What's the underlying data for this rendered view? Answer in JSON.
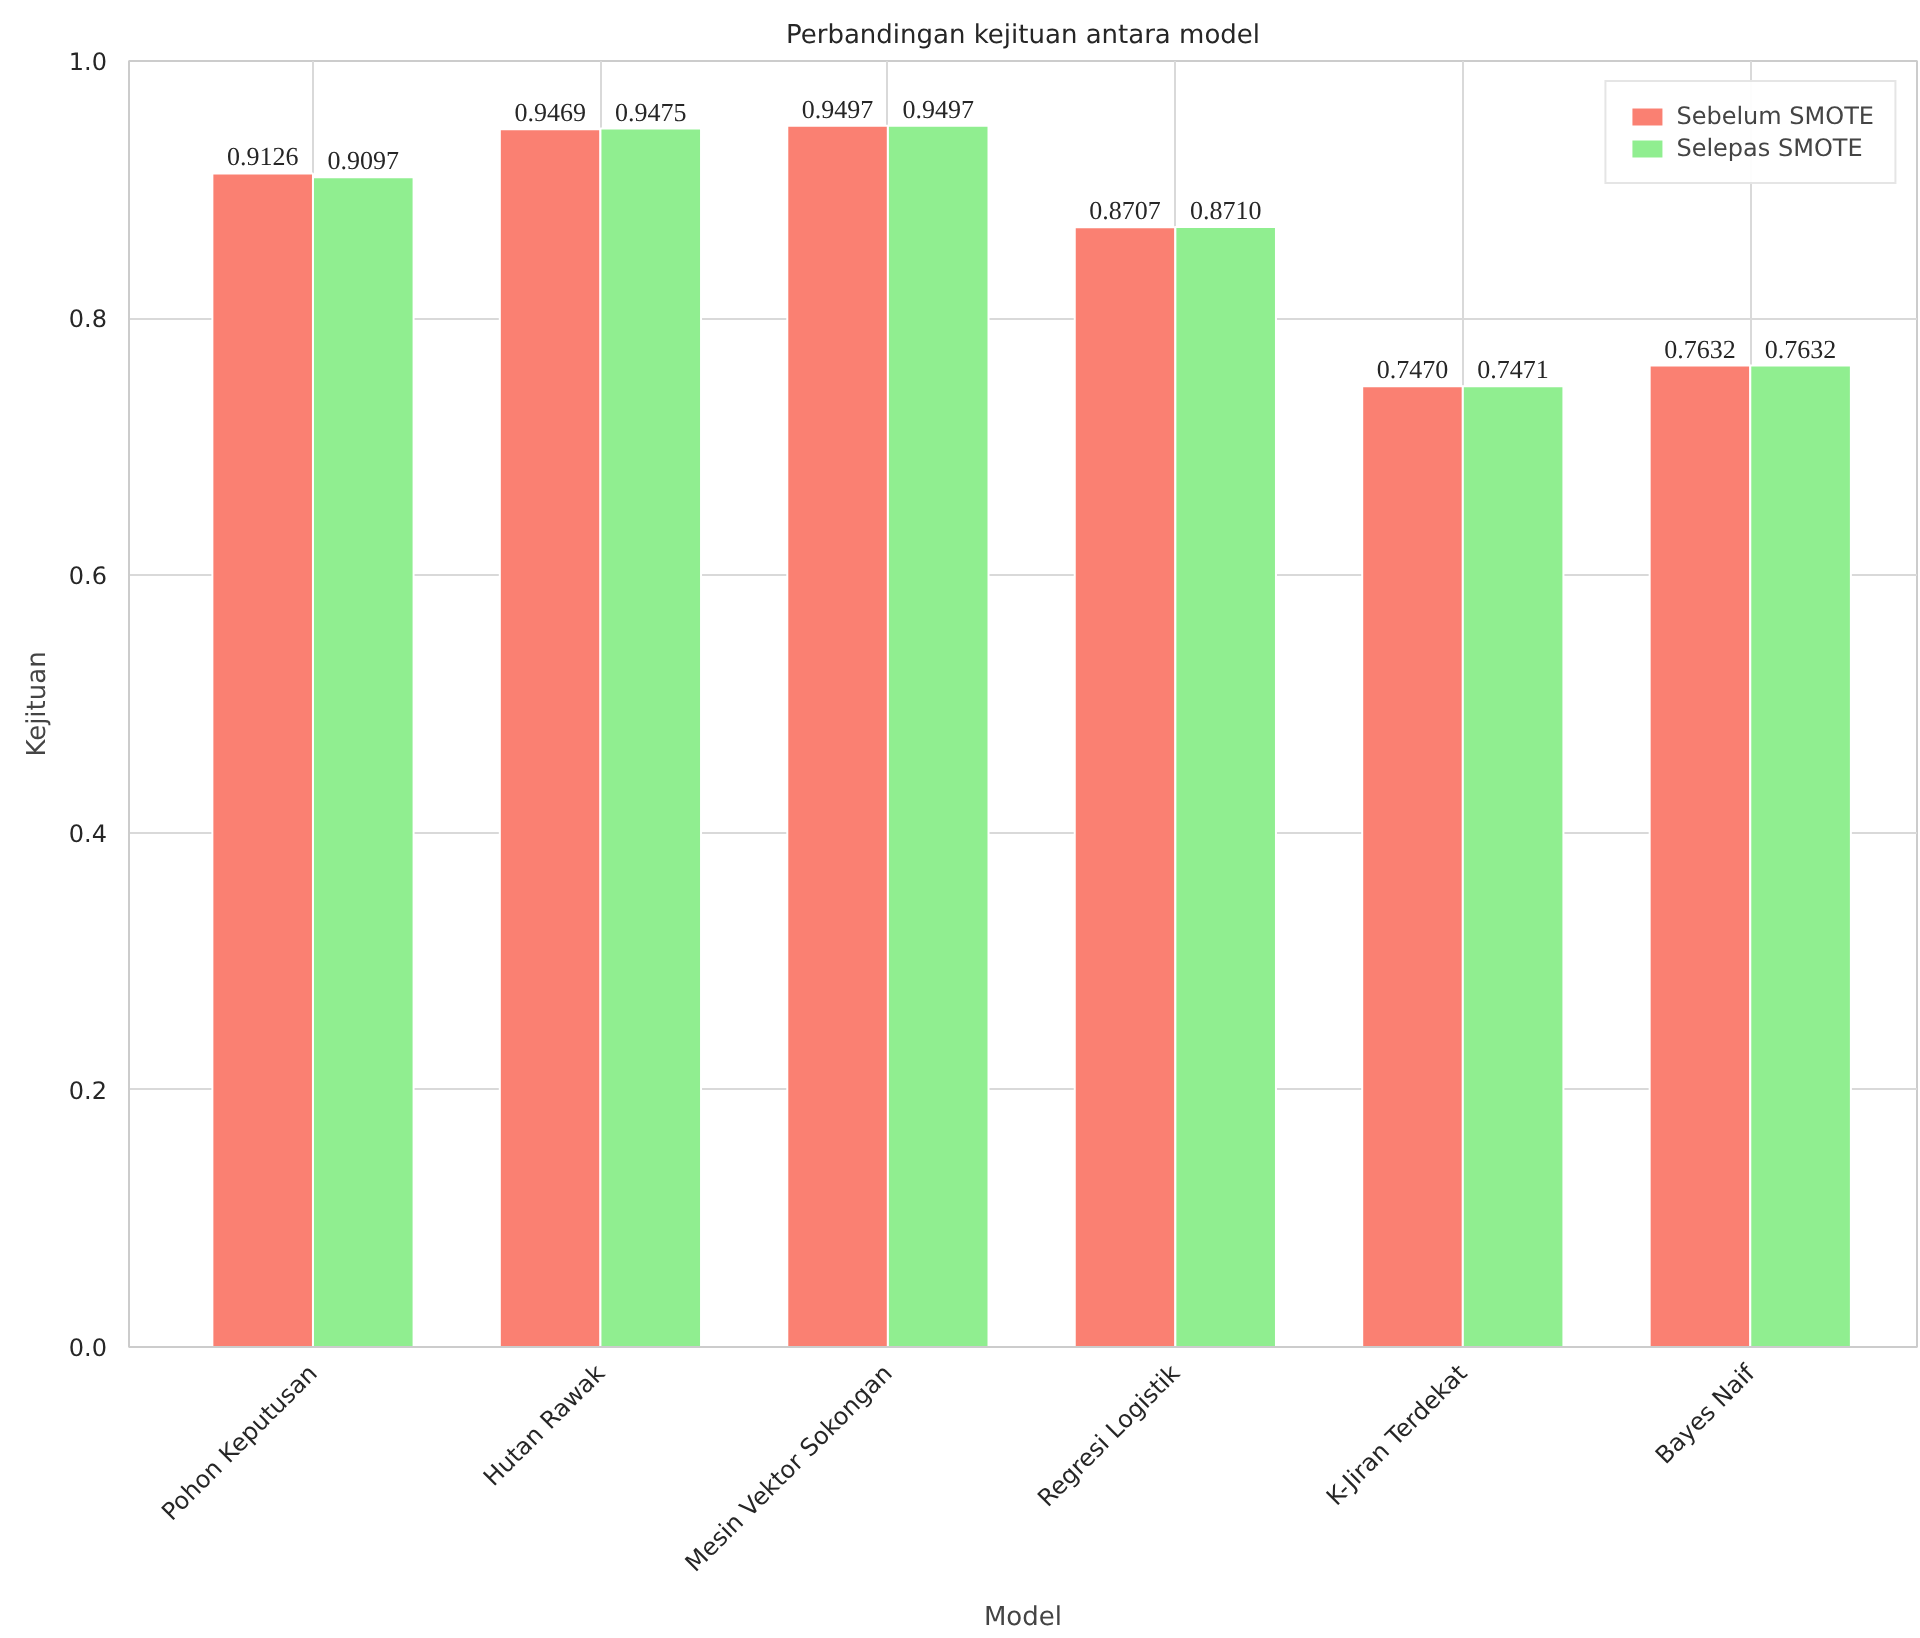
{
  "chart_data": {
    "type": "bar",
    "title": "Perbandingan kejituan antara model",
    "xlabel": "Model",
    "ylabel": "Kejituan",
    "categories": [
      "Pohon Keputusan",
      "Hutan Rawak",
      "Mesin Vektor Sokongan",
      "Regresi Logistik",
      "K-Jiran Terdekat",
      "Bayes Naif"
    ],
    "series": [
      {
        "name": "Sebelum SMOTE",
        "color": "#fa8072",
        "values": [
          0.9126,
          0.9469,
          0.9497,
          0.8707,
          0.747,
          0.7632
        ],
        "value_labels": [
          "0.9126",
          "0.9469",
          "0.9497",
          "0.8707",
          "0.7470",
          "0.7632"
        ]
      },
      {
        "name": "Selepas SMOTE",
        "color": "#90ee90",
        "values": [
          0.9097,
          0.9475,
          0.9497,
          0.871,
          0.7471,
          0.7632
        ],
        "value_labels": [
          "0.9097",
          "0.9475",
          "0.9497",
          "0.8710",
          "0.7471",
          "0.7632"
        ]
      }
    ],
    "ylim": [
      0,
      1.0
    ],
    "yticks": [
      {
        "value": 0,
        "label": "0.0"
      },
      0.2,
      0.4,
      0.6,
      0.8,
      {
        "value": 1.0,
        "label": "1.0"
      }
    ],
    "grid": true,
    "legend": "top right"
  }
}
